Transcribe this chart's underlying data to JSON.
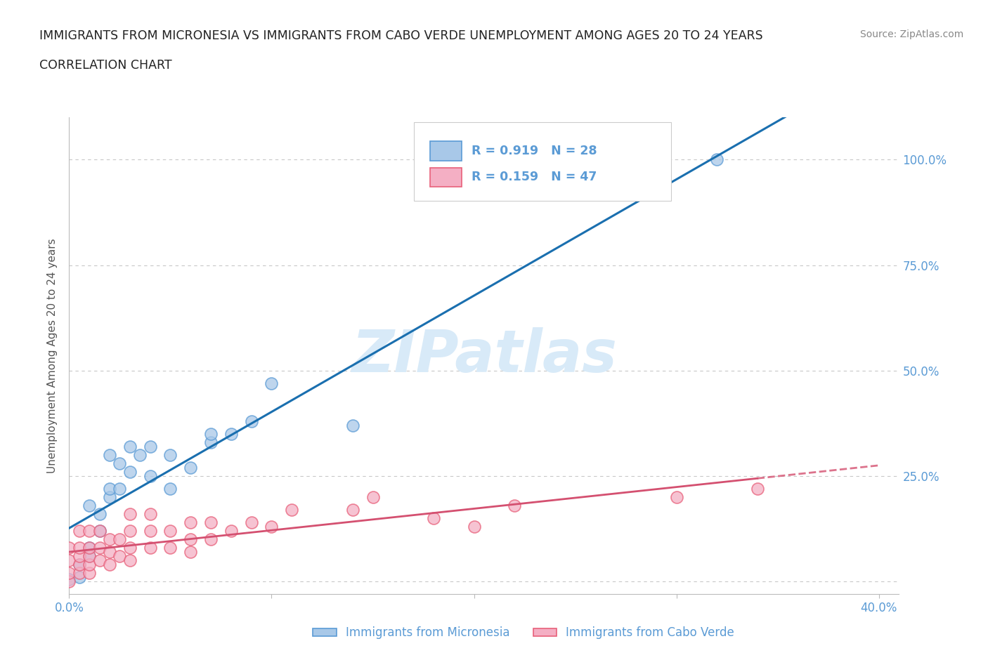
{
  "title_line1": "IMMIGRANTS FROM MICRONESIA VS IMMIGRANTS FROM CABO VERDE UNEMPLOYMENT AMONG AGES 20 TO 24 YEARS",
  "title_line2": "CORRELATION CHART",
  "source_text": "Source: ZipAtlas.com",
  "ylabel": "Unemployment Among Ages 20 to 24 years",
  "xlim": [
    0.0,
    0.41
  ],
  "ylim": [
    -0.03,
    1.1
  ],
  "xticks": [
    0.0,
    0.1,
    0.2,
    0.3,
    0.4
  ],
  "xticklabels": [
    "0.0%",
    "",
    "",
    "",
    "40.0%"
  ],
  "ytick_positions": [
    0.0,
    0.25,
    0.5,
    0.75,
    1.0
  ],
  "ytick_labels_right": [
    "",
    "25.0%",
    "50.0%",
    "75.0%",
    "100.0%"
  ],
  "micronesia_color": "#a8c8e8",
  "cabo_verde_color": "#f4afc4",
  "micronesia_edge_color": "#5b9bd5",
  "cabo_verde_edge_color": "#e8607a",
  "micronesia_line_color": "#1a6faf",
  "cabo_verde_line_color": "#d45070",
  "legend_R1": "0.919",
  "legend_N1": "28",
  "legend_R2": "0.159",
  "legend_N2": "47",
  "legend_label1": "Immigrants from Micronesia",
  "legend_label2": "Immigrants from Cabo Verde",
  "watermark": "ZIPatlas",
  "watermark_color": "#d8eaf8",
  "micronesia_x": [
    0.0,
    0.005,
    0.005,
    0.01,
    0.01,
    0.01,
    0.015,
    0.015,
    0.02,
    0.02,
    0.02,
    0.025,
    0.025,
    0.03,
    0.03,
    0.035,
    0.04,
    0.04,
    0.05,
    0.05,
    0.06,
    0.07,
    0.07,
    0.08,
    0.09,
    0.1,
    0.14,
    0.32
  ],
  "micronesia_y": [
    0.005,
    0.01,
    0.04,
    0.06,
    0.08,
    0.18,
    0.12,
    0.16,
    0.2,
    0.22,
    0.3,
    0.22,
    0.28,
    0.26,
    0.32,
    0.3,
    0.25,
    0.32,
    0.22,
    0.3,
    0.27,
    0.33,
    0.35,
    0.35,
    0.38,
    0.47,
    0.37,
    1.0
  ],
  "cabo_verde_x": [
    0.0,
    0.0,
    0.0,
    0.0,
    0.005,
    0.005,
    0.005,
    0.005,
    0.005,
    0.01,
    0.01,
    0.01,
    0.01,
    0.01,
    0.015,
    0.015,
    0.015,
    0.02,
    0.02,
    0.02,
    0.025,
    0.025,
    0.03,
    0.03,
    0.03,
    0.03,
    0.04,
    0.04,
    0.04,
    0.05,
    0.05,
    0.06,
    0.06,
    0.06,
    0.07,
    0.07,
    0.08,
    0.09,
    0.1,
    0.11,
    0.14,
    0.15,
    0.18,
    0.2,
    0.22,
    0.3,
    0.34
  ],
  "cabo_verde_y": [
    0.0,
    0.02,
    0.05,
    0.08,
    0.02,
    0.04,
    0.06,
    0.08,
    0.12,
    0.02,
    0.04,
    0.06,
    0.08,
    0.12,
    0.05,
    0.08,
    0.12,
    0.04,
    0.07,
    0.1,
    0.06,
    0.1,
    0.05,
    0.08,
    0.12,
    0.16,
    0.08,
    0.12,
    0.16,
    0.08,
    0.12,
    0.07,
    0.1,
    0.14,
    0.1,
    0.14,
    0.12,
    0.14,
    0.13,
    0.17,
    0.17,
    0.2,
    0.15,
    0.13,
    0.18,
    0.2,
    0.22
  ],
  "grid_color": "#c8c8c8",
  "background_color": "#ffffff",
  "title_color": "#222222",
  "axis_tick_color": "#5b9bd5",
  "bottom_legend_label_color": "#5b9bd5"
}
